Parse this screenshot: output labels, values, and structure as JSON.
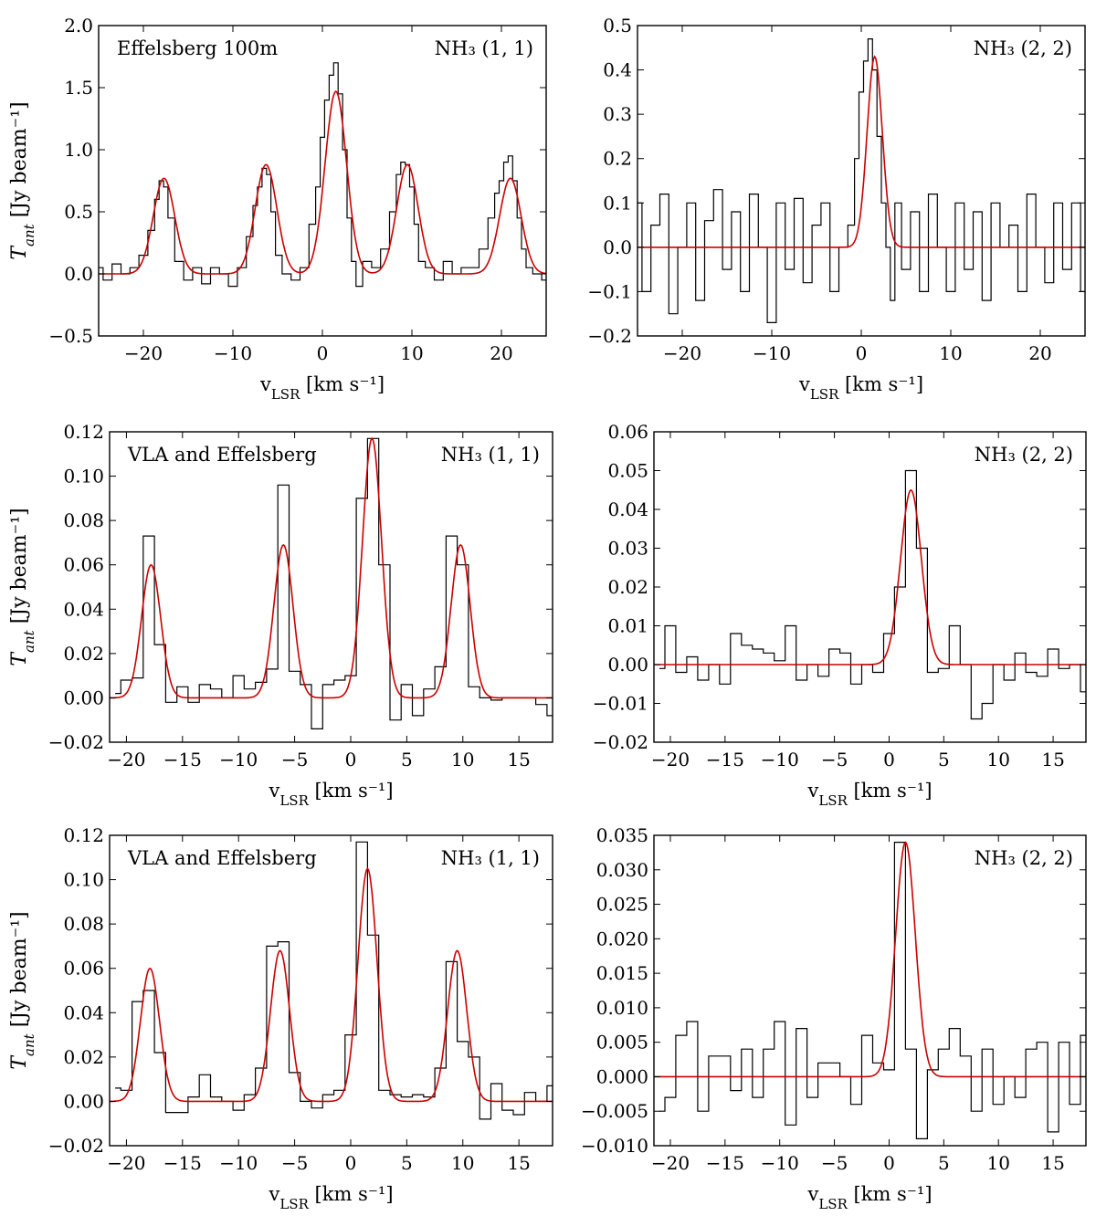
{
  "figure": {
    "ylabel": "T_ant [Jy beam⁻¹]",
    "xlabel": "v_LSR [km s⁻¹]"
  },
  "chart_data": [
    {
      "type": "line",
      "label": "Effelsberg 100m",
      "line": "NH₃ (1, 1)",
      "xlim": [
        -25,
        25
      ],
      "ylim": [
        -0.5,
        2.0
      ],
      "xticks": [
        -20,
        -10,
        0,
        10,
        20
      ],
      "yticks": [
        -0.5,
        0.0,
        0.5,
        1.0,
        1.5,
        2.0
      ],
      "xticklabels": [
        "−20",
        "−10",
        "0",
        "10",
        "20"
      ],
      "yticklabels": [
        "−0.5",
        "0.0",
        "0.5",
        "1.0",
        "1.5",
        "2.0"
      ],
      "xlabel": "v_LSR [km s⁻¹]",
      "ylabel": "T_ant [Jy beam⁻¹]",
      "style": "step",
      "series": [
        {
          "color": "#000000",
          "step": true,
          "x": [
            -25,
            -24,
            -23,
            -22,
            -21,
            -20,
            -19,
            -18.5,
            -18,
            -17.5,
            -17,
            -16,
            -15,
            -14,
            -13,
            -12,
            -11,
            -10,
            -9,
            -8,
            -7.5,
            -7,
            -6.5,
            -6,
            -5.5,
            -5,
            -4,
            -3,
            -2,
            -1,
            -0.5,
            0,
            0.5,
            1,
            1.5,
            2,
            2.5,
            3,
            3.5,
            4,
            5,
            6,
            7,
            8,
            8.5,
            9,
            9.5,
            10,
            10.5,
            11,
            12,
            13,
            14,
            15,
            16,
            17,
            18,
            19,
            19.5,
            20,
            20.5,
            21,
            21.5,
            22,
            22.5,
            23,
            24,
            25
          ],
          "y": [
            0.05,
            -0.05,
            0.08,
            0.0,
            0.05,
            0.15,
            0.35,
            0.6,
            0.75,
            0.7,
            0.45,
            0.1,
            -0.05,
            0.05,
            -0.08,
            0.05,
            0.0,
            -0.1,
            0.05,
            0.3,
            0.55,
            0.7,
            0.85,
            0.8,
            0.5,
            0.15,
            0.0,
            -0.05,
            0.05,
            0.4,
            0.7,
            1.1,
            1.4,
            1.6,
            1.7,
            1.45,
            1.0,
            0.45,
            0.1,
            -0.1,
            0.1,
            0.05,
            0.2,
            0.5,
            0.8,
            0.9,
            0.88,
            0.7,
            0.4,
            0.1,
            0.05,
            -0.05,
            0.1,
            0.0,
            0.05,
            0.05,
            0.2,
            0.45,
            0.65,
            0.75,
            0.9,
            0.95,
            0.75,
            0.45,
            0.2,
            0.05,
            0.0,
            -0.05
          ]
        },
        {
          "color": "#cc0000",
          "fit": true,
          "components": [
            {
              "mu": -17.7,
              "sigma": 1.2,
              "amp": 0.77
            },
            {
              "mu": -6.3,
              "sigma": 1.2,
              "amp": 0.88
            },
            {
              "mu": 1.5,
              "sigma": 1.2,
              "amp": 1.47
            },
            {
              "mu": 9.5,
              "sigma": 1.2,
              "amp": 0.88
            },
            {
              "mu": 21.0,
              "sigma": 1.2,
              "amp": 0.77
            }
          ]
        }
      ]
    },
    {
      "type": "line",
      "label": "",
      "line": "NH₃ (2, 2)",
      "xlim": [
        -25,
        25
      ],
      "ylim": [
        -0.2,
        0.5
      ],
      "xticks": [
        -20,
        -10,
        0,
        10,
        20
      ],
      "yticks": [
        -0.2,
        -0.1,
        0.0,
        0.1,
        0.2,
        0.3,
        0.4,
        0.5
      ],
      "xticklabels": [
        "−20",
        "−10",
        "0",
        "10",
        "20"
      ],
      "yticklabels": [
        "−0.2",
        "−0.1",
        "0.0",
        "0.1",
        "0.2",
        "0.3",
        "0.4",
        "0.5"
      ],
      "xlabel": "v_LSR [km s⁻¹]",
      "style": "step",
      "series": [
        {
          "color": "#000000",
          "step": true,
          "x": [
            -25,
            -24,
            -23,
            -22,
            -21,
            -20,
            -19,
            -18,
            -17,
            -16,
            -15,
            -14,
            -13,
            -12,
            -11,
            -10,
            -9,
            -8,
            -7,
            -6,
            -5,
            -4,
            -3,
            -2,
            -1,
            -0.5,
            0,
            0.5,
            1,
            1.5,
            2,
            2.5,
            3,
            3.5,
            4,
            5,
            6,
            7,
            8,
            9,
            10,
            11,
            12,
            13,
            14,
            15,
            16,
            17,
            18,
            19,
            20,
            21,
            22,
            23,
            24,
            25
          ],
          "y": [
            0.1,
            -0.1,
            0.05,
            0.12,
            -0.15,
            0.0,
            0.1,
            -0.12,
            0.06,
            0.13,
            -0.05,
            0.08,
            -0.1,
            0.12,
            0.0,
            -0.17,
            0.1,
            -0.05,
            0.11,
            -0.08,
            0.05,
            0.1,
            -0.1,
            0.0,
            0.05,
            0.2,
            0.35,
            0.42,
            0.47,
            0.4,
            0.25,
            0.1,
            0.0,
            -0.12,
            0.1,
            -0.05,
            0.08,
            -0.1,
            0.12,
            0.0,
            -0.1,
            0.1,
            -0.05,
            0.08,
            -0.12,
            0.1,
            0.0,
            0.05,
            -0.1,
            0.12,
            0.0,
            -0.08,
            0.1,
            -0.05,
            0.1,
            -0.1
          ]
        },
        {
          "color": "#cc0000",
          "fit": true,
          "components": [
            {
              "mu": 1.5,
              "sigma": 0.85,
              "amp": 0.43
            }
          ]
        }
      ]
    },
    {
      "type": "line",
      "label": "VLA and Effelsberg",
      "line": "NH₃ (1, 1)",
      "xlim": [
        -21.5,
        18
      ],
      "ylim": [
        -0.02,
        0.12
      ],
      "xticks": [
        -20,
        -15,
        -10,
        -5,
        0,
        5,
        10,
        15
      ],
      "yticks": [
        -0.02,
        0.0,
        0.02,
        0.04,
        0.06,
        0.08,
        0.1,
        0.12
      ],
      "xticklabels": [
        "−20",
        "−15",
        "−10",
        "−5",
        "0",
        "5",
        "10",
        "15"
      ],
      "yticklabels": [
        "−0.02",
        "0.00",
        "0.02",
        "0.04",
        "0.06",
        "0.08",
        "0.10",
        "0.12"
      ],
      "xlabel": "v_LSR [km s⁻¹]",
      "ylabel": "T_ant [Jy beam⁻¹]",
      "style": "step",
      "series": [
        {
          "color": "#000000",
          "step": true,
          "x": [
            -21,
            -20,
            -19,
            -18,
            -17,
            -16,
            -15,
            -14,
            -13,
            -12,
            -11,
            -10,
            -9,
            -8,
            -7,
            -6,
            -5,
            -4,
            -3,
            -2,
            -1,
            0,
            1,
            2,
            3,
            4,
            5,
            6,
            7,
            8,
            9,
            10,
            11,
            12,
            13,
            14,
            15,
            16,
            17,
            18
          ],
          "y": [
            0.002,
            0.008,
            0.009,
            0.073,
            0.024,
            -0.002,
            0.005,
            -0.002,
            0.006,
            0.004,
            0.0,
            0.01,
            0.004,
            0.007,
            0.013,
            0.096,
            0.012,
            0.006,
            -0.014,
            0.006,
            0.008,
            0.01,
            0.09,
            0.117,
            0.06,
            -0.01,
            0.006,
            -0.008,
            0.004,
            0.014,
            0.073,
            0.06,
            0.005,
            0.0,
            -0.001,
            0.0,
            0.0,
            0.0,
            -0.003,
            -0.008
          ]
        },
        {
          "color": "#cc0000",
          "fit": true,
          "components": [
            {
              "mu": -17.8,
              "sigma": 0.85,
              "amp": 0.06
            },
            {
              "mu": -6.0,
              "sigma": 0.85,
              "amp": 0.069
            },
            {
              "mu": 1.9,
              "sigma": 0.85,
              "amp": 0.117
            },
            {
              "mu": 9.8,
              "sigma": 0.85,
              "amp": 0.069
            }
          ]
        }
      ]
    },
    {
      "type": "line",
      "label": "",
      "line": "NH₃ (2, 2)",
      "xlim": [
        -21.5,
        18
      ],
      "ylim": [
        -0.02,
        0.06
      ],
      "xticks": [
        -20,
        -15,
        -10,
        -5,
        0,
        5,
        10,
        15
      ],
      "yticks": [
        -0.02,
        -0.01,
        0.0,
        0.01,
        0.02,
        0.03,
        0.04,
        0.05,
        0.06
      ],
      "xticklabels": [
        "−20",
        "−15",
        "−10",
        "−5",
        "0",
        "5",
        "10",
        "15"
      ],
      "yticklabels": [
        "−0.02",
        "−0.01",
        "0.00",
        "0.01",
        "0.02",
        "0.03",
        "0.04",
        "0.05",
        "0.06"
      ],
      "xlabel": "v_LSR [km s⁻¹]",
      "style": "step",
      "series": [
        {
          "color": "#000000",
          "step": true,
          "x": [
            -21,
            -20,
            -19,
            -18,
            -17,
            -16,
            -15,
            -14,
            -13,
            -12,
            -11,
            -10,
            -9,
            -8,
            -7,
            -6,
            -5,
            -4,
            -3,
            -2,
            -1,
            0,
            1,
            2,
            3,
            4,
            5,
            6,
            7,
            8,
            9,
            10,
            11,
            12,
            13,
            14,
            15,
            16,
            17,
            18
          ],
          "y": [
            -0.001,
            0.01,
            -0.002,
            0.002,
            -0.004,
            0.0,
            -0.005,
            0.008,
            0.005,
            0.004,
            0.003,
            0.001,
            0.01,
            -0.004,
            0.0,
            -0.003,
            0.004,
            0.003,
            -0.005,
            0.0,
            -0.002,
            0.008,
            0.02,
            0.05,
            0.03,
            -0.002,
            -0.001,
            0.01,
            0.0,
            -0.014,
            -0.01,
            0.0,
            -0.004,
            0.003,
            -0.002,
            -0.003,
            0.004,
            -0.001,
            0.0,
            -0.007
          ]
        },
        {
          "color": "#cc0000",
          "fit": true,
          "components": [
            {
              "mu": 2.0,
              "sigma": 0.95,
              "amp": 0.045
            }
          ]
        }
      ]
    },
    {
      "type": "line",
      "label": "VLA and Effelsberg",
      "line": "NH₃ (1, 1)",
      "xlim": [
        -21.5,
        18
      ],
      "ylim": [
        -0.02,
        0.12
      ],
      "xticks": [
        -20,
        -15,
        -10,
        -5,
        0,
        5,
        10,
        15
      ],
      "yticks": [
        -0.02,
        0.0,
        0.02,
        0.04,
        0.06,
        0.08,
        0.1,
        0.12
      ],
      "xticklabels": [
        "−20",
        "−15",
        "−10",
        "−5",
        "0",
        "5",
        "10",
        "15"
      ],
      "yticklabels": [
        "−0.02",
        "0.00",
        "0.02",
        "0.04",
        "0.06",
        "0.08",
        "0.10",
        "0.12"
      ],
      "xlabel": "v_LSR [km s⁻¹]",
      "ylabel": "T_ant [Jy beam⁻¹]",
      "style": "step",
      "series": [
        {
          "color": "#000000",
          "step": true,
          "x": [
            -21,
            -20,
            -19,
            -18,
            -17,
            -16,
            -15,
            -14,
            -13,
            -12,
            -11,
            -10,
            -9,
            -8,
            -7,
            -6,
            -5,
            -4,
            -3,
            -2,
            -1,
            0,
            1,
            2,
            3,
            4,
            5,
            6,
            7,
            8,
            9,
            10,
            11,
            12,
            13,
            14,
            15,
            16,
            17,
            18
          ],
          "y": [
            0.006,
            0.005,
            0.045,
            0.05,
            0.022,
            -0.005,
            -0.005,
            0.002,
            0.012,
            0.002,
            0.0,
            -0.004,
            0.003,
            0.015,
            0.07,
            0.072,
            0.013,
            0.0,
            -0.003,
            0.003,
            0.005,
            0.03,
            0.117,
            0.075,
            0.005,
            0.003,
            0.002,
            0.003,
            0.002,
            0.015,
            0.063,
            0.027,
            0.02,
            -0.008,
            0.008,
            -0.004,
            -0.006,
            0.004,
            0.0,
            0.007
          ]
        },
        {
          "color": "#cc0000",
          "fit": true,
          "components": [
            {
              "mu": -17.9,
              "sigma": 0.85,
              "amp": 0.06
            },
            {
              "mu": -6.3,
              "sigma": 0.85,
              "amp": 0.068
            },
            {
              "mu": 1.5,
              "sigma": 0.85,
              "amp": 0.105
            },
            {
              "mu": 9.5,
              "sigma": 0.85,
              "amp": 0.068
            }
          ]
        }
      ]
    },
    {
      "type": "line",
      "label": "",
      "line": "NH₃ (2, 2)",
      "xlim": [
        -21.5,
        18
      ],
      "ylim": [
        -0.01,
        0.035
      ],
      "xticks": [
        -20,
        -15,
        -10,
        -5,
        0,
        5,
        10,
        15
      ],
      "yticks": [
        -0.01,
        -0.005,
        0.0,
        0.005,
        0.01,
        0.015,
        0.02,
        0.025,
        0.03,
        0.035
      ],
      "xticklabels": [
        "−20",
        "−15",
        "−10",
        "−5",
        "0",
        "5",
        "10",
        "15"
      ],
      "yticklabels": [
        "−0.010",
        "−0.005",
        "0.000",
        "0.005",
        "0.010",
        "0.015",
        "0.020",
        "0.025",
        "0.030",
        "0.035"
      ],
      "xlabel": "v_LSR [km s⁻¹]",
      "style": "step",
      "series": [
        {
          "color": "#000000",
          "step": true,
          "x": [
            -21,
            -20,
            -19,
            -18,
            -17,
            -16,
            -15,
            -14,
            -13,
            -12,
            -11,
            -10,
            -9,
            -8,
            -7,
            -6,
            -5,
            -4,
            -3,
            -2,
            -1,
            0,
            1,
            2,
            3,
            4,
            5,
            6,
            7,
            8,
            9,
            10,
            11,
            12,
            13,
            14,
            15,
            16,
            17,
            18
          ],
          "y": [
            -0.005,
            -0.003,
            0.006,
            0.008,
            -0.005,
            0.003,
            0.003,
            -0.002,
            0.004,
            -0.003,
            0.004,
            0.008,
            -0.007,
            0.007,
            -0.003,
            0.002,
            0.002,
            0.0,
            -0.004,
            0.006,
            0.002,
            0.001,
            0.034,
            0.004,
            -0.009,
            0.001,
            0.004,
            0.007,
            0.003,
            -0.005,
            0.004,
            -0.004,
            0.0,
            -0.003,
            0.004,
            0.005,
            -0.008,
            0.005,
            -0.004,
            0.006
          ]
        },
        {
          "color": "#cc0000",
          "fit": true,
          "components": [
            {
              "mu": 1.5,
              "sigma": 0.9,
              "amp": 0.034
            }
          ]
        }
      ]
    }
  ]
}
